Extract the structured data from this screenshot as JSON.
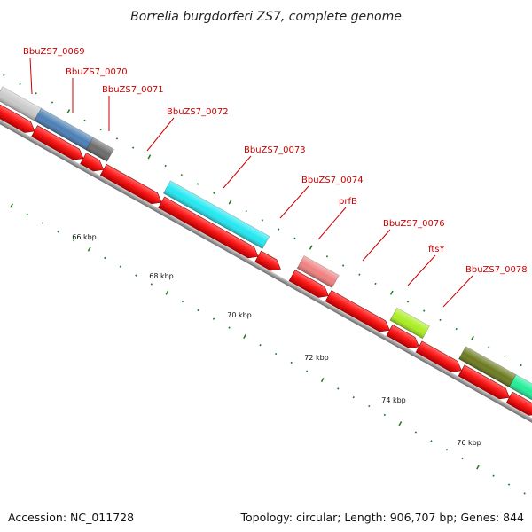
{
  "title": "Borrelia burgdorferi ZS7, complete genome",
  "footer": {
    "accession": "Accession: NC_011728",
    "topology": "Topology: circular; Length: 906,707 bp; Genes: 844"
  },
  "colors": {
    "cds": "#ff0000",
    "backbone": "#8a8a8a",
    "tick": "#1a7a1a",
    "label": "#cc0000"
  },
  "genes": [
    {
      "label": "BbuZS7_0069",
      "color": "#c9c9c9"
    },
    {
      "label": "BbuZS7_0070",
      "color": "#4a7fb5"
    },
    {
      "label": "BbuZS7_0071",
      "color": "#6b6b6b"
    },
    {
      "label": "BbuZS7_0072",
      "color": null
    },
    {
      "label": "BbuZS7_0073",
      "color": "#22e8f2"
    },
    {
      "label": "BbuZS7_0074",
      "color": null
    },
    {
      "label": "prfB",
      "color": "#f08080"
    },
    {
      "label": "BbuZS7_0076",
      "color": null
    },
    {
      "label": "ftsY",
      "color": "#aaee22"
    },
    {
      "label": "BbuZS7_0078",
      "color": "#6b7a1e"
    },
    {
      "label": "",
      "color": "#22ee99"
    }
  ],
  "scale": {
    "unit": "kbp",
    "labels": [
      "66 kbp",
      "68 kbp",
      "70 kbp",
      "72 kbp",
      "74 kbp",
      "76 kbp"
    ]
  }
}
